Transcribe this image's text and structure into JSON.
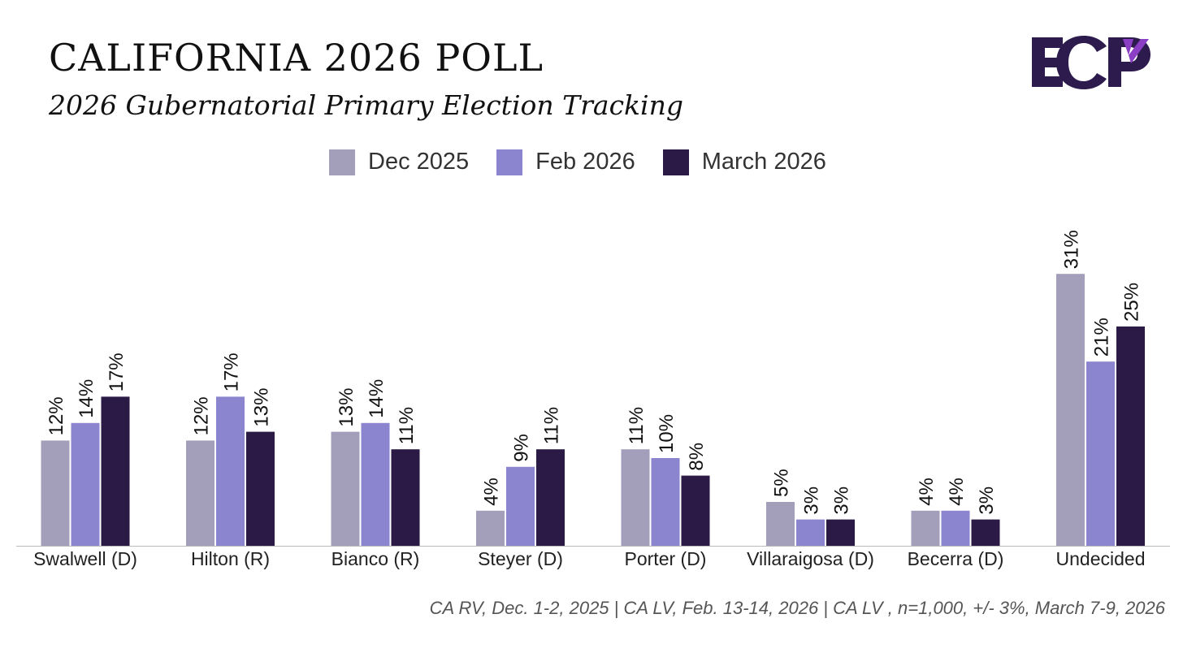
{
  "header": {
    "title": "CALIFORNIA 2026 POLL",
    "subtitle": "2026 Gubernatorial Primary Election Tracking"
  },
  "logo": {
    "text": "ECP",
    "colors": {
      "main": "#2d1b4e",
      "accent": "#8b3fc4"
    }
  },
  "chart_data": {
    "type": "bar",
    "title": "CALIFORNIA 2026 POLL",
    "subtitle": "2026 Gubernatorial Primary Election Tracking",
    "categories": [
      "Swalwell (D)",
      "Hilton (R)",
      "Bianco (R)",
      "Steyer (D)",
      "Porter (D)",
      "Villaraigosa (D)",
      "Becerra (D)",
      "Undecided"
    ],
    "series": [
      {
        "name": "Dec 2025",
        "color": "#a39fbb",
        "values": [
          12,
          12,
          13,
          4,
          11,
          5,
          4,
          31
        ]
      },
      {
        "name": "Feb 2026",
        "color": "#8b84cf",
        "values": [
          14,
          17,
          14,
          9,
          10,
          3,
          4,
          21
        ]
      },
      {
        "name": "March 2026",
        "color": "#2b1a45",
        "values": [
          17,
          13,
          11,
          11,
          8,
          3,
          3,
          25
        ]
      }
    ],
    "value_suffix": "%",
    "xlabel": "",
    "ylabel": "",
    "ylim": [
      0,
      35
    ],
    "grid": false,
    "legend": "top-center"
  },
  "footnote": "CA RV, Dec. 1-2, 2025 | CA LV, Feb. 13-14, 2026 | CA LV , n=1,000, +/- 3%, March 7-9, 2026"
}
